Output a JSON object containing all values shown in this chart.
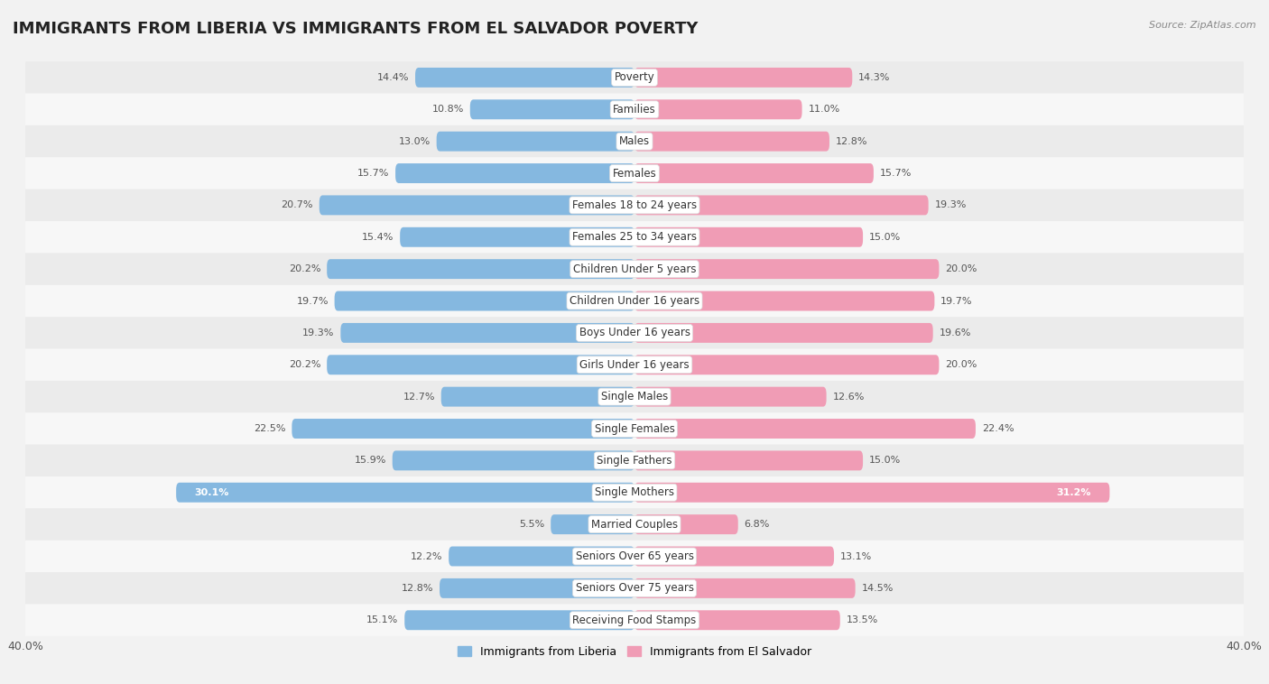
{
  "title": "IMMIGRANTS FROM LIBERIA VS IMMIGRANTS FROM EL SALVADOR POVERTY",
  "source": "Source: ZipAtlas.com",
  "categories": [
    "Poverty",
    "Families",
    "Males",
    "Females",
    "Females 18 to 24 years",
    "Females 25 to 34 years",
    "Children Under 5 years",
    "Children Under 16 years",
    "Boys Under 16 years",
    "Girls Under 16 years",
    "Single Males",
    "Single Females",
    "Single Fathers",
    "Single Mothers",
    "Married Couples",
    "Seniors Over 65 years",
    "Seniors Over 75 years",
    "Receiving Food Stamps"
  ],
  "liberia_values": [
    14.4,
    10.8,
    13.0,
    15.7,
    20.7,
    15.4,
    20.2,
    19.7,
    19.3,
    20.2,
    12.7,
    22.5,
    15.9,
    30.1,
    5.5,
    12.2,
    12.8,
    15.1
  ],
  "elsalvador_values": [
    14.3,
    11.0,
    12.8,
    15.7,
    19.3,
    15.0,
    20.0,
    19.7,
    19.6,
    20.0,
    12.6,
    22.4,
    15.0,
    31.2,
    6.8,
    13.1,
    14.5,
    13.5
  ],
  "liberia_color": "#85b8e0",
  "elsalvador_color": "#f09cb5",
  "liberia_label": "Immigrants from Liberia",
  "elsalvador_label": "Immigrants from El Salvador",
  "xlim": 40.0,
  "row_color_odd": "#ebebeb",
  "row_color_even": "#f7f7f7",
  "bar_height": 0.62,
  "title_fontsize": 13,
  "label_fontsize": 8.5,
  "value_fontsize": 8,
  "bg_color": "#f2f2f2"
}
